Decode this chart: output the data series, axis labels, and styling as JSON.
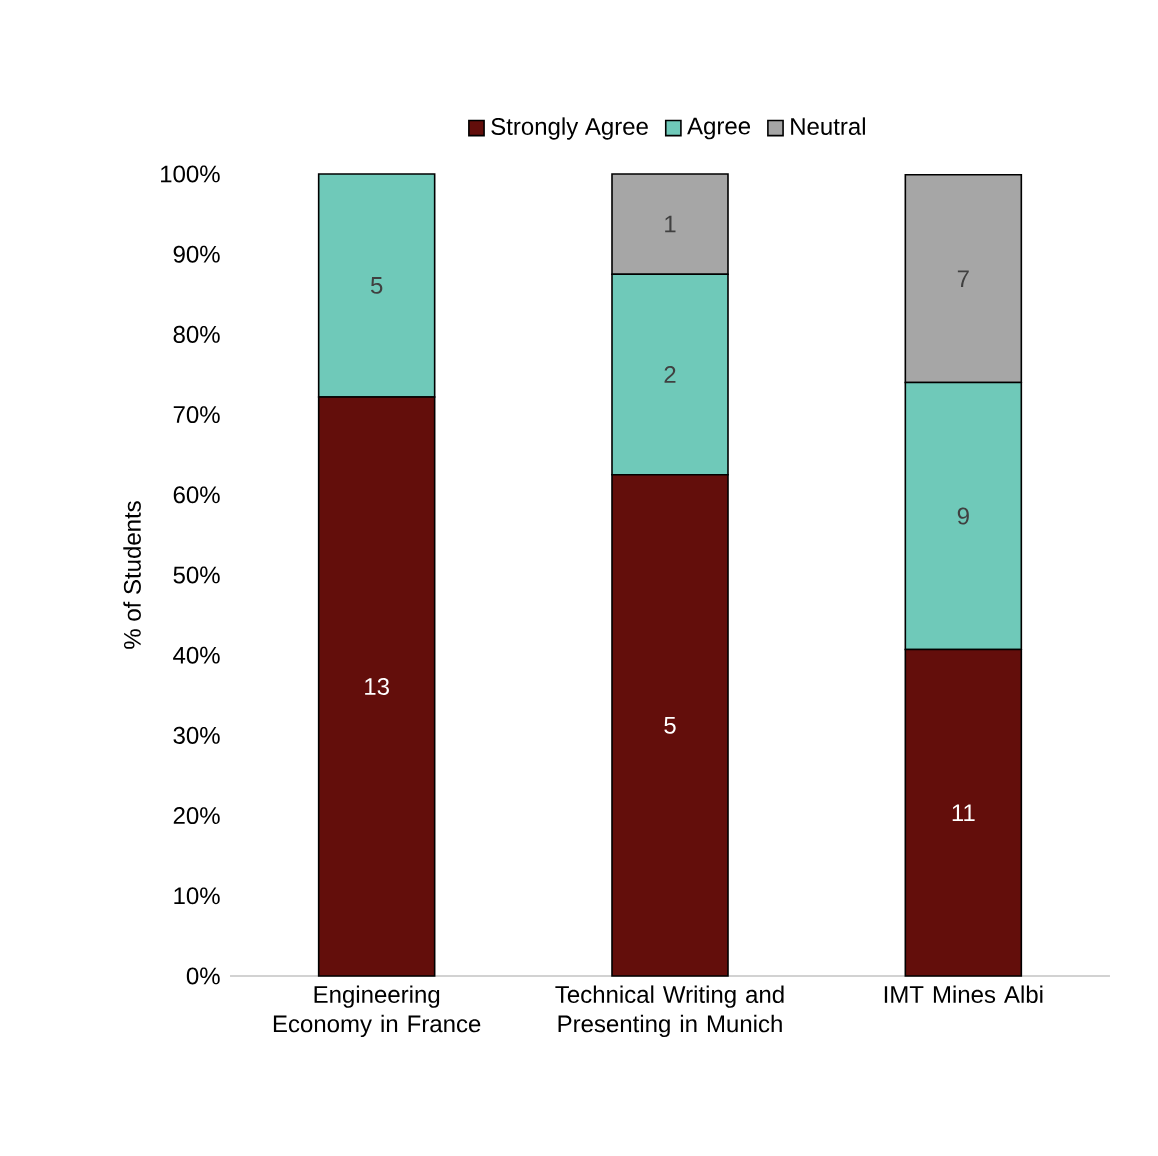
{
  "chart_data": {
    "type": "bar",
    "stacked": true,
    "ylabel": "% of Students",
    "legend": "top",
    "categories": [
      "Engineering Economy in France",
      "Technical Writing and Presenting in Munich",
      "IMT Mines Albi"
    ],
    "series": [
      {
        "name": "Strongly Agree",
        "color": "#630e0b",
        "values": [
          72.2,
          62.5,
          40.7
        ]
      },
      {
        "name": "Agree",
        "color": "#6fc9b9",
        "values": [
          27.8,
          25.0,
          33.3
        ]
      },
      {
        "name": "Neutral",
        "color": "#a6a6a6",
        "values": [
          0,
          12.5,
          25.9
        ]
      }
    ],
    "annotations": [
      "13",
      "5",
      "5",
      "2",
      "1",
      "11",
      "9",
      "7"
    ],
    "ylim": [
      0,
      100
    ],
    "yticks": [
      {
        "value": 0,
        "label": "0%"
      },
      {
        "value": 10,
        "label": "10%"
      },
      {
        "value": 20,
        "label": "20%"
      },
      {
        "value": 30,
        "label": "30%"
      },
      {
        "value": 40,
        "label": "40%"
      },
      {
        "value": 50,
        "label": "50%"
      },
      {
        "value": 60,
        "label": "60%"
      },
      {
        "value": 70,
        "label": "70%"
      },
      {
        "value": 80,
        "label": "80%"
      },
      {
        "value": 90,
        "label": "90%"
      },
      {
        "value": 100,
        "label": "100%"
      }
    ]
  }
}
